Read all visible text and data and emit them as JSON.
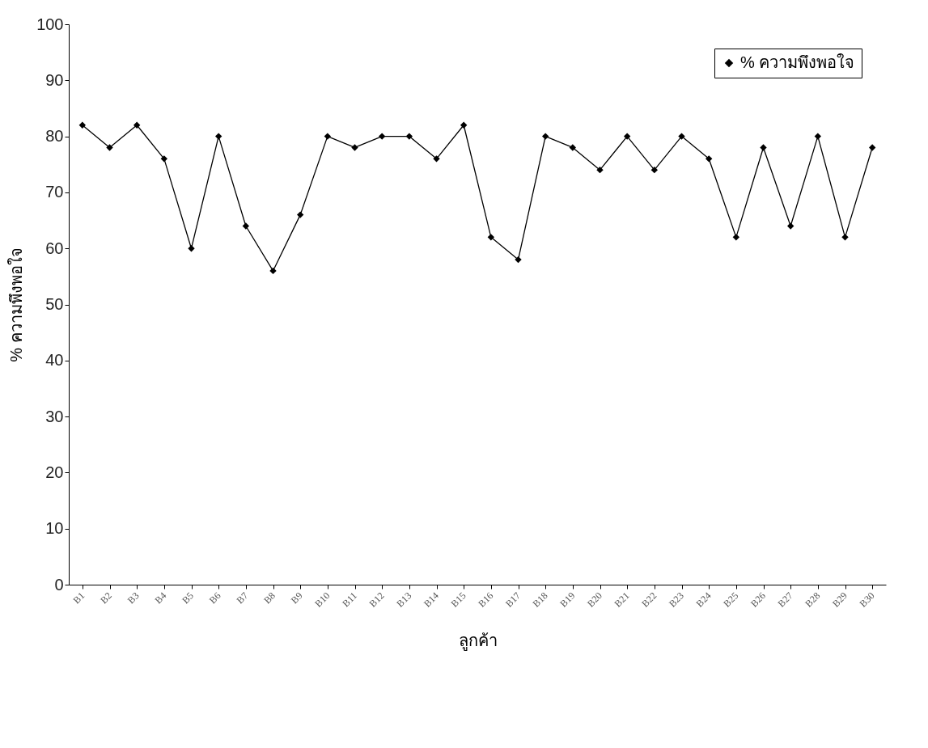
{
  "chart_data": {
    "type": "line",
    "xlabel": "ลูกค้า",
    "ylabel": "% ความพึงพอใจ",
    "categories": [
      "B1",
      "B2",
      "B3",
      "B4",
      "B5",
      "B6",
      "B7",
      "B8",
      "B9",
      "B10",
      "B11",
      "B12",
      "B13",
      "B14",
      "B15",
      "B16",
      "B17",
      "B18",
      "B19",
      "B20",
      "B21",
      "B22",
      "B23",
      "B24",
      "B25",
      "B26",
      "B27",
      "B28",
      "B29",
      "B30"
    ],
    "series": [
      {
        "name": "% ความพึงพอใจ",
        "color": "#000000",
        "values": [
          82,
          78,
          82,
          76,
          60,
          80,
          64,
          56,
          66,
          80,
          78,
          80,
          80,
          76,
          82,
          62,
          58,
          80,
          78,
          74,
          80,
          74,
          80,
          76,
          62,
          78,
          64,
          80,
          62,
          78
        ]
      }
    ],
    "ylim": [
      0,
      100
    ],
    "yticks": [
      0,
      10,
      20,
      30,
      40,
      50,
      60,
      70,
      80,
      90,
      100
    ],
    "grid": false,
    "legend": "top right",
    "marker": "diamond",
    "line_style": "solid"
  }
}
